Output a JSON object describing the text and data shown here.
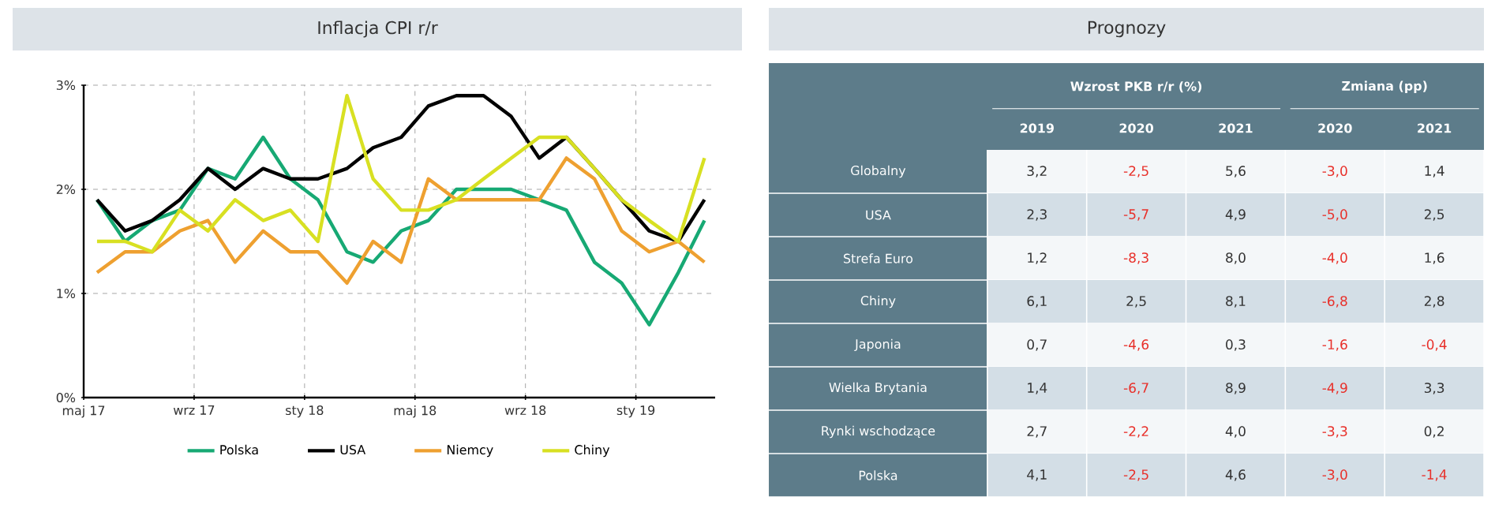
{
  "chart_data": [
    {
      "type": "line",
      "title": "Inflacja CPI r/r",
      "x": [
        "2017-05-16",
        "2017-06-16",
        "2017-07-16",
        "2017-08-16",
        "2017-09-16",
        "2017-10-16",
        "2017-11-16",
        "2017-12-16",
        "2018-01-16",
        "2018-02-16",
        "2018-03-16",
        "2018-04-16",
        "2018-05-16",
        "2018-06-16",
        "2018-07-16",
        "2018-08-16",
        "2018-09-16",
        "2018-10-16",
        "2018-11-16",
        "2018-12-16",
        "2019-01-16",
        "2019-02-16",
        "2019-03-16"
      ],
      "series": [
        {
          "name": "Polska",
          "color": "#17a974",
          "values": [
            1.9,
            1.5,
            1.7,
            1.8,
            2.2,
            2.1,
            2.5,
            2.1,
            1.9,
            1.4,
            1.3,
            1.6,
            1.7,
            2.0,
            2.0,
            2.0,
            1.9,
            1.8,
            1.3,
            1.1,
            0.7,
            1.2,
            1.7
          ]
        },
        {
          "name": "USA",
          "color": "#000000",
          "values": [
            1.9,
            1.6,
            1.7,
            1.9,
            2.2,
            2.0,
            2.2,
            2.1,
            2.1,
            2.2,
            2.4,
            2.5,
            2.8,
            2.9,
            2.9,
            2.7,
            2.3,
            2.5,
            2.2,
            1.9,
            1.6,
            1.5,
            1.9
          ]
        },
        {
          "name": "Niemcy",
          "color": "#eea030",
          "values": [
            1.2,
            1.4,
            1.4,
            1.6,
            1.7,
            1.3,
            1.6,
            1.4,
            1.4,
            1.1,
            1.5,
            1.3,
            2.1,
            1.9,
            1.9,
            1.9,
            1.9,
            2.3,
            2.1,
            1.6,
            1.4,
            1.5,
            1.3
          ]
        },
        {
          "name": "Chiny",
          "color": "#d8e022",
          "values": [
            1.5,
            1.5,
            1.4,
            1.8,
            1.6,
            1.9,
            1.7,
            1.8,
            1.5,
            2.9,
            2.1,
            1.8,
            1.8,
            1.9,
            2.1,
            2.3,
            2.5,
            2.5,
            2.2,
            1.9,
            1.7,
            1.5,
            2.3
          ]
        }
      ],
      "xlim": [
        "2017-05",
        "2019-03-28"
      ],
      "xticks": [
        {
          "value": "2017-05",
          "label": "maj 17"
        },
        {
          "value": "2017-09",
          "label": "wrz 17"
        },
        {
          "value": "2018-01",
          "label": "sty 18"
        },
        {
          "value": "2018-05",
          "label": "maj 18"
        },
        {
          "value": "2018-09",
          "label": "wrz 18"
        },
        {
          "value": "2019-01",
          "label": "sty 19"
        }
      ],
      "ylim": [
        0,
        3
      ],
      "yticks": [
        {
          "value": 0,
          "label": "0%"
        },
        {
          "value": 1,
          "label": "1%"
        },
        {
          "value": 2,
          "label": "2%"
        },
        {
          "value": 3,
          "label": "3%"
        }
      ],
      "grid": true,
      "legend": "bottom",
      "marker": "none",
      "line_style": "solid"
    },
    {
      "type": "heatmap",
      "title": "Prognozy",
      "categories": [
        "2019",
        "2020",
        "2021",
        "2020",
        "2021"
      ],
      "y_categories": [
        "Globalny",
        "USA",
        "Strefa Euro",
        "Chiny",
        "Japonia",
        "Wielka Brytania",
        "Rynki wschodzące",
        "Polska"
      ],
      "cells": [
        [
          3.2,
          -2.5,
          5.6,
          -3.0,
          1.4
        ],
        [
          2.3,
          -5.7,
          4.9,
          -5.0,
          2.5
        ],
        [
          1.2,
          -8.3,
          8.0,
          -4.0,
          1.6
        ],
        [
          6.1,
          2.5,
          8.1,
          -6.8,
          2.8
        ],
        [
          0.7,
          -4.6,
          0.3,
          -1.6,
          -0.4
        ],
        [
          1.4,
          -6.7,
          8.9,
          -4.9,
          3.3
        ],
        [
          2.7,
          -2.2,
          4.0,
          -3.3,
          0.2
        ],
        [
          4.1,
          -2.5,
          4.6,
          -3.0,
          -1.4
        ]
      ],
      "cell_labels": [
        [
          "3,2",
          "-2,5",
          "5,6",
          "-3,0",
          "1,4"
        ],
        [
          "2,3",
          "-5,7",
          "4,9",
          "-5,0",
          "2,5"
        ],
        [
          "1,2",
          "-8,3",
          "8,0",
          "-4,0",
          "1,6"
        ],
        [
          "6,1",
          "2,5",
          "8,1",
          "-6,8",
          "2,8"
        ],
        [
          "0,7",
          "-4,6",
          "0,3",
          "-1,6",
          "-0,4"
        ],
        [
          "1,4",
          "-6,7",
          "8,9",
          "-4,9",
          "3,3"
        ],
        [
          "2,7",
          "-2,2",
          "4,0",
          "-3,3",
          "0,2"
        ],
        [
          "4,1",
          "-2,5",
          "4,6",
          "-3,0",
          "-1,4"
        ]
      ],
      "annotations": [
        "Wzrost PKB r/r (%)",
        "Zmiana (pp)"
      ]
    }
  ]
}
